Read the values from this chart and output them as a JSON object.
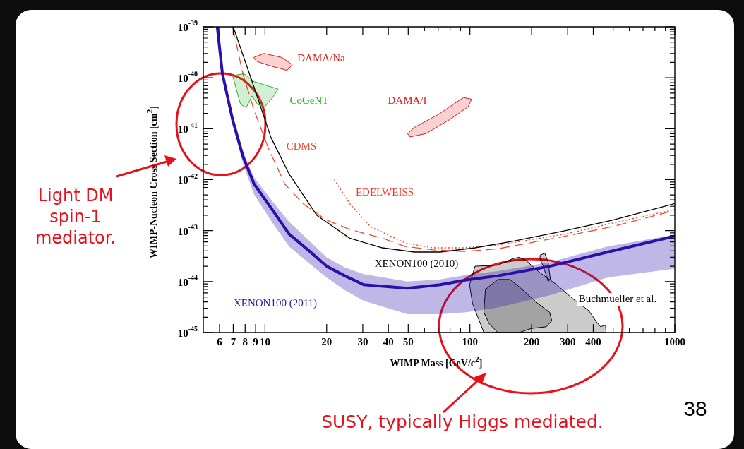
{
  "chart_data": {
    "type": "line",
    "xlabel": "WIMP Mass [GeV/c$^{2}$]",
    "ylabel": "WIMP-Nucleon Cross Section [cm$^{2}$]",
    "log": "xy",
    "marker": "none",
    "xlim": [
      5,
      1000
    ],
    "ylim": [
      1e-45,
      1e-39
    ],
    "xticks": [
      6,
      7,
      8,
      9,
      10,
      20,
      30,
      40,
      50,
      {
        "value": 60,
        "label": null
      },
      {
        "value": 70,
        "label": null
      },
      {
        "value": 80,
        "label": null
      },
      {
        "value": 90,
        "label": null
      },
      100,
      200,
      300,
      400,
      {
        "value": 500,
        "label": null
      },
      {
        "value": 600,
        "label": null
      },
      {
        "value": 700,
        "label": null
      },
      {
        "value": 800,
        "label": null
      },
      {
        "value": 900,
        "label": null
      },
      1000
    ],
    "yticks": [
      {
        "value": 1e-45,
        "label": "10$^{-45}$"
      },
      {
        "value": 2e-45,
        "label": null
      },
      {
        "value": 3e-45,
        "label": null
      },
      {
        "value": 4e-45,
        "label": null
      },
      {
        "value": 5e-45,
        "label": null
      },
      {
        "value": 6e-45,
        "label": null
      },
      {
        "value": 7e-45,
        "label": null
      },
      {
        "value": 8e-45,
        "label": null
      },
      {
        "value": 9e-45,
        "label": null
      },
      {
        "value": 1e-44,
        "label": "10$^{-44}$"
      },
      {
        "value": 2e-44,
        "label": null
      },
      {
        "value": 3e-44,
        "label": null
      },
      {
        "value": 4e-44,
        "label": null
      },
      {
        "value": 5e-44,
        "label": null
      },
      {
        "value": 6e-44,
        "label": null
      },
      {
        "value": 7e-44,
        "label": null
      },
      {
        "value": 8e-44,
        "label": null
      },
      {
        "value": 9e-44,
        "label": null
      },
      {
        "value": 1e-43,
        "label": "10$^{-43}$"
      },
      {
        "value": 2e-43,
        "label": null
      },
      {
        "value": 3e-43,
        "label": null
      },
      {
        "value": 4e-43,
        "label": null
      },
      {
        "value": 5e-43,
        "label": null
      },
      {
        "value": 6e-43,
        "label": null
      },
      {
        "value": 7e-43,
        "label": null
      },
      {
        "value": 8e-43,
        "label": null
      },
      {
        "value": 9e-43,
        "label": null
      },
      {
        "value": 1e-42,
        "label": "10$^{-42}$"
      },
      {
        "value": 2e-42,
        "label": null
      },
      {
        "value": 3e-42,
        "label": null
      },
      {
        "value": 4e-42,
        "label": null
      },
      {
        "value": 5e-42,
        "label": null
      },
      {
        "value": 6e-42,
        "label": null
      },
      {
        "value": 7e-42,
        "label": null
      },
      {
        "value": 8e-42,
        "label": null
      },
      {
        "value": 9e-42,
        "label": null
      },
      {
        "value": 1e-41,
        "label": "10$^{-41}$"
      },
      {
        "value": 2e-41,
        "label": null
      },
      {
        "value": 3e-41,
        "label": null
      },
      {
        "value": 4e-41,
        "label": null
      },
      {
        "value": 5e-41,
        "label": null
      },
      {
        "value": 6e-41,
        "label": null
      },
      {
        "value": 7e-41,
        "label": null
      },
      {
        "value": 8e-41,
        "label": null
      },
      {
        "value": 9e-41,
        "label": null
      },
      {
        "value": 1e-40,
        "label": "10$^{-40}$"
      },
      {
        "value": 2e-40,
        "label": null
      },
      {
        "value": 3e-40,
        "label": null
      },
      {
        "value": 4e-40,
        "label": null
      },
      {
        "value": 5e-40,
        "label": null
      },
      {
        "value": 6e-40,
        "label": null
      },
      {
        "value": 7e-40,
        "label": null
      },
      {
        "value": 8e-40,
        "label": null
      },
      {
        "value": 9e-40,
        "label": null
      },
      {
        "value": 1e-39,
        "label": "10$^{-39}$"
      }
    ],
    "series": [
      {
        "name": "XENON100 (2011)",
        "color": "#2b0fa8",
        "line_style": "solid",
        "x": [
          5.85,
          6.2,
          6.95,
          7.8,
          8.85,
          10.9,
          13.1,
          16.2,
          20,
          24.5,
          30.3,
          49.6,
          71.7,
          95.8,
          137,
          245,
          470,
          1000
        ],
        "values": [
          1e-39,
          1.2e-40,
          1.5e-41,
          2.9e-42,
          8.2e-43,
          2.5e-43,
          8.6e-44,
          4.2e-44,
          2e-44,
          1.3e-44,
          8.7e-45,
          7.4e-45,
          8.7e-45,
          1.08e-44,
          1.3e-44,
          2e-44,
          3.8e-44,
          7.8e-44
        ],
        "upper": [
          1e-39,
          1.4e-40,
          1.9e-41,
          3.7e-42,
          1.1e-42,
          3.7e-43,
          1.5e-43,
          6.7e-44,
          3e-44,
          1.9e-44,
          1.4e-44,
          1e-44,
          1.1e-44,
          1.35e-44,
          1.6e-44,
          2.4e-44,
          4.9e-44,
          8.3e-44
        ],
        "lower": [
          1e-39,
          1.05e-40,
          1.2e-41,
          2.1e-42,
          5.1e-43,
          1.4e-43,
          4.9e-44,
          2.4e-44,
          1.2e-44,
          6.8e-45,
          4.2e-45,
          2.3e-45,
          2.3e-45,
          2.5e-45,
          3.1e-45,
          5.4e-45,
          1.2e-44,
          1.8e-44
        ]
      },
      {
        "name": "XENON100 (2010)",
        "color": "#000000",
        "line_style": "solid",
        "x": [
          7.0,
          8.85,
          10.7,
          13.1,
          17.9,
          25.9,
          37.4,
          53.6,
          71.7,
          106,
          166,
          293,
          496,
          1000
        ],
        "values": [
          1e-39,
          6.5e-41,
          6.7e-42,
          1.3e-42,
          2e-43,
          7.1e-44,
          4.6e-44,
          3.8e-44,
          3.8e-44,
          4.6e-44,
          6.3e-44,
          1e-43,
          1.6e-43,
          3.4e-43
        ]
      },
      {
        "name": "CDMS",
        "color": "#f04a2a",
        "line_style": "dashed",
        "x": [
          6.95,
          7.8,
          8.85,
          10.35,
          12.5,
          15.3,
          20,
          25.9,
          37.4,
          48.4,
          66,
          93,
          137,
          293,
          496,
          1000
        ],
        "values": [
          1e-39,
          1.2e-40,
          2.3e-41,
          4.3e-42,
          8.2e-43,
          3.4e-43,
          1.6e-43,
          1.06e-43,
          7.1e-44,
          4.9e-44,
          4.2e-44,
          3.9e-44,
          4.4e-44,
          7.8e-44,
          1.2e-43,
          2.5e-43
        ]
      },
      {
        "name": "EDELWEISS",
        "color": "#f03c28",
        "line_style": "dotted",
        "x": [
          21.8,
          25.9,
          32.7,
          48.4,
          66,
          93,
          137,
          293,
          496,
          1000
        ],
        "values": [
          1e-42,
          3.4e-43,
          1.2e-43,
          5.7e-44,
          4.6e-44,
          4.6e-44,
          5.2e-44,
          8.6e-44,
          1.4e-43,
          2.6e-43
        ]
      },
      {
        "name": "CoGeNT",
        "type": "area",
        "color": "#22b022",
        "line_style": "solid",
        "x": [
          6.95,
          7.9,
          8.85,
          11.6,
          10.9,
          9.95,
          9.2,
          8.65,
          8.1,
          7.6,
          6.95
        ],
        "values": [
          1.1e-40,
          1.2e-40,
          8.4e-41,
          6e-41,
          4.1e-41,
          2.7e-41,
          3e-41,
          4.4e-41,
          2.6e-41,
          3e-41,
          1.1e-40
        ]
      },
      {
        "name": "DAMA/Na",
        "type": "area",
        "color": "#e01a1a",
        "line_style": "solid",
        "x": [
          8.8,
          9.9,
          12.1,
          13.6,
          12.8,
          10.7,
          9.1,
          8.8
        ],
        "values": [
          2.5e-40,
          3e-40,
          2.5e-40,
          1.8e-40,
          1.4e-40,
          1.7e-40,
          2.1e-40,
          2.5e-40
        ]
      },
      {
        "name": "DAMA/I",
        "type": "area",
        "color": "#e01a1a",
        "line_style": "solid",
        "x": [
          49.6,
          53.6,
          70,
          93,
          102,
          98,
          79.4,
          61,
          51,
          49.6
        ],
        "values": [
          8e-42,
          1.06e-41,
          1.9e-41,
          4.1e-41,
          3.8e-41,
          2.7e-41,
          1.5e-41,
          8e-42,
          6.9e-42,
          8e-42
        ]
      },
      {
        "name": "Buchmueller et al.",
        "type": "area",
        "color": "#000000",
        "x": [
          117,
          103,
          99.6,
          106,
          137,
          161,
          174,
          188,
          215,
          265,
          318,
          380,
          411,
          434,
          459,
          462,
          117
        ],
        "values": [
          1e-45,
          3.7e-45,
          8.7e-45,
          2e-44,
          2.1e-44,
          2.8e-44,
          3e-44,
          2.6e-44,
          1.6e-44,
          8.7e-45,
          4.6e-45,
          2.7e-45,
          1.7e-45,
          1.3e-45,
          1.4e-45,
          1e-45,
          1e-45
        ]
      },
      {
        "type": "area",
        "color": "#000000",
        "x": [
          137,
          124,
          117,
          119,
          137,
          157,
          174,
          215,
          245,
          251,
          236,
          199,
          174,
          137
        ],
        "values": [
          1e-45,
          1.5e-45,
          2.5e-45,
          7e-45,
          1.1e-44,
          1.1e-44,
          7.9e-45,
          3.7e-45,
          2.5e-45,
          1.7e-45,
          1.3e-45,
          1.2e-45,
          1e-45,
          1e-45
        ]
      },
      {
        "type": "area",
        "color": "#000000",
        "x": [
          220,
          232,
          241,
          247,
          241,
          228,
          220,
          220
        ],
        "values": [
          3.3e-44,
          3.6e-44,
          2.4e-44,
          1.1e-44,
          1e-44,
          2e-44,
          2.8e-44,
          3.3e-44
        ]
      }
    ],
    "annotations": [
      "Light DM spin-1 mediator.",
      "SUSY, typically Higgs mediated.",
      "38"
    ]
  }
}
